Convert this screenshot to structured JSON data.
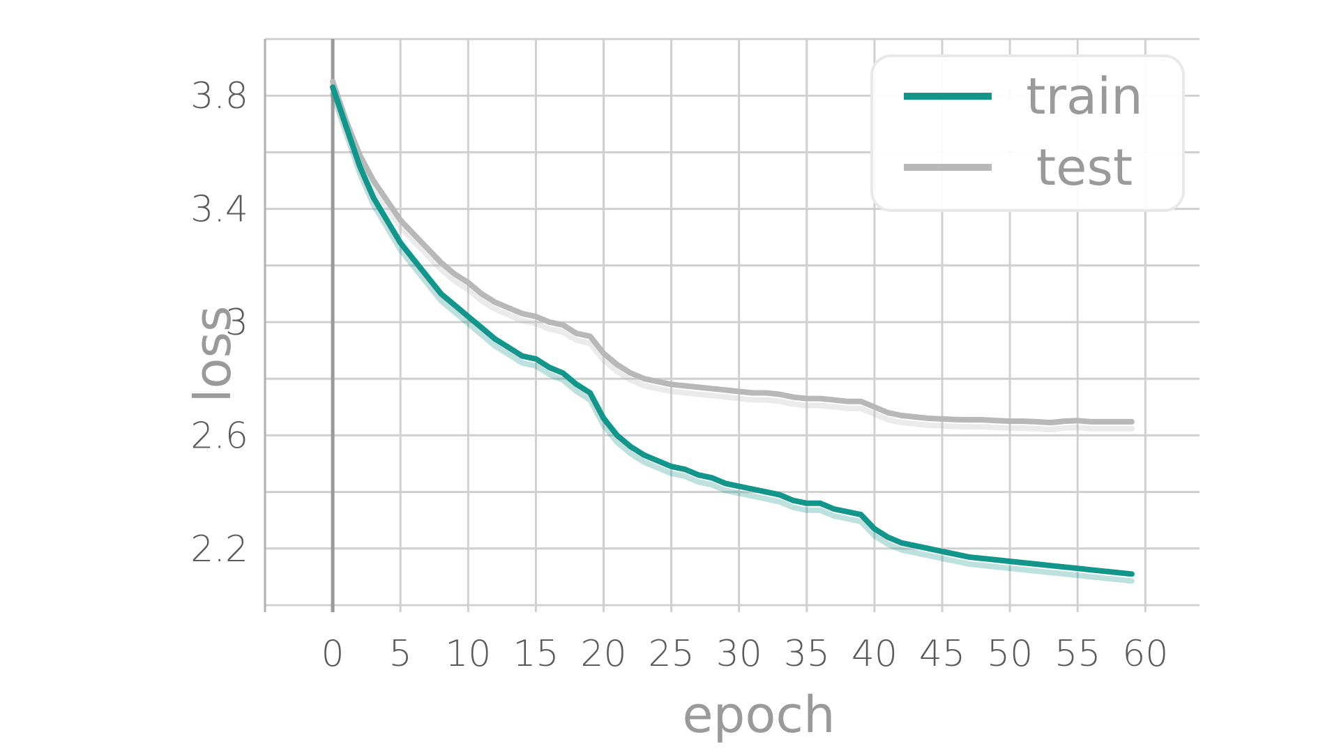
{
  "chart_data": {
    "type": "line",
    "xlabel": "epoch",
    "ylabel": "loss",
    "xlim": [
      -5,
      64
    ],
    "ylim": [
      2.0,
      4.0
    ],
    "xticks": [
      0,
      5,
      10,
      15,
      20,
      25,
      30,
      35,
      40,
      45,
      50,
      55,
      60
    ],
    "xtick_labels": [
      "0",
      "5",
      "10",
      "15",
      "20",
      "25",
      "30",
      "35",
      "40",
      "45",
      "50",
      "55",
      "60"
    ],
    "yticks": [
      2.2,
      2.6,
      3.0,
      3.4,
      3.8
    ],
    "ytick_labels": [
      "2.2",
      "2.6",
      "3",
      "3.4",
      "3.8"
    ],
    "grid": true,
    "legend_position": "top-right",
    "series": [
      {
        "name": "train",
        "color": "#12958a",
        "x": [
          0,
          1,
          2,
          3,
          4,
          5,
          6,
          7,
          8,
          9,
          10,
          11,
          12,
          13,
          14,
          15,
          16,
          17,
          18,
          19,
          20,
          21,
          22,
          23,
          24,
          25,
          26,
          27,
          28,
          29,
          30,
          31,
          32,
          33,
          34,
          35,
          36,
          37,
          38,
          39,
          40,
          41,
          42,
          43,
          44,
          45,
          46,
          47,
          48,
          49,
          50,
          51,
          52,
          53,
          54,
          55,
          56,
          57,
          58,
          59
        ],
        "values": [
          3.83,
          3.69,
          3.55,
          3.44,
          3.36,
          3.28,
          3.22,
          3.16,
          3.1,
          3.06,
          3.02,
          2.98,
          2.94,
          2.91,
          2.88,
          2.87,
          2.84,
          2.82,
          2.78,
          2.75,
          2.66,
          2.6,
          2.56,
          2.53,
          2.51,
          2.49,
          2.48,
          2.46,
          2.45,
          2.43,
          2.42,
          2.41,
          2.4,
          2.39,
          2.37,
          2.36,
          2.36,
          2.34,
          2.33,
          2.32,
          2.27,
          2.24,
          2.22,
          2.21,
          2.2,
          2.19,
          2.18,
          2.17,
          2.165,
          2.16,
          2.155,
          2.15,
          2.145,
          2.14,
          2.135,
          2.13,
          2.125,
          2.12,
          2.115,
          2.11
        ]
      },
      {
        "name": "test",
        "color": "#b8b8b8",
        "x": [
          0,
          1,
          2,
          3,
          4,
          5,
          6,
          7,
          8,
          9,
          10,
          11,
          12,
          13,
          14,
          15,
          16,
          17,
          18,
          19,
          20,
          21,
          22,
          23,
          24,
          25,
          26,
          27,
          28,
          29,
          30,
          31,
          32,
          33,
          34,
          35,
          36,
          37,
          38,
          39,
          40,
          41,
          42,
          43,
          44,
          45,
          46,
          47,
          48,
          49,
          50,
          51,
          52,
          53,
          54,
          55,
          56,
          57,
          58,
          59
        ],
        "values": [
          3.85,
          3.71,
          3.59,
          3.5,
          3.43,
          3.36,
          3.31,
          3.26,
          3.21,
          3.17,
          3.14,
          3.1,
          3.07,
          3.05,
          3.03,
          3.02,
          3.0,
          2.99,
          2.96,
          2.95,
          2.89,
          2.85,
          2.82,
          2.8,
          2.79,
          2.78,
          2.775,
          2.77,
          2.765,
          2.76,
          2.755,
          2.75,
          2.75,
          2.745,
          2.735,
          2.73,
          2.73,
          2.725,
          2.72,
          2.72,
          2.7,
          2.68,
          2.67,
          2.665,
          2.66,
          2.658,
          2.656,
          2.655,
          2.655,
          2.652,
          2.65,
          2.65,
          2.648,
          2.645,
          2.65,
          2.652,
          2.648,
          2.648,
          2.648,
          2.648
        ]
      }
    ]
  }
}
